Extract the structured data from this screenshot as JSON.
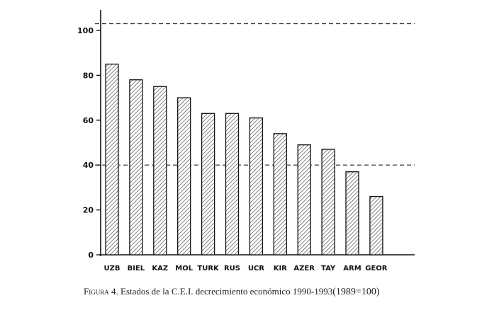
{
  "chart_data": {
    "type": "bar",
    "categories": [
      "UZB",
      "BIEL",
      "KAZ",
      "MOL",
      "TURK",
      "RUS",
      "UCR",
      "KIR",
      "AZER",
      "TAY",
      "ARM",
      "GEOR"
    ],
    "values": [
      85,
      78,
      75,
      70,
      63,
      63,
      61,
      54,
      49,
      47,
      37,
      26
    ],
    "yticks": [
      0,
      20,
      40,
      60,
      80,
      100
    ],
    "ylim": [
      0,
      110
    ],
    "reference_lines": [
      103,
      40
    ],
    "grid": false,
    "legend": "none",
    "pattern": "diagonal-hatch"
  },
  "caption": {
    "figure_label": "Figura",
    "text": " 4. Estados de la C.E.I. decrecimiento económico 1990-1993",
    "paren": "(1989=100)"
  }
}
